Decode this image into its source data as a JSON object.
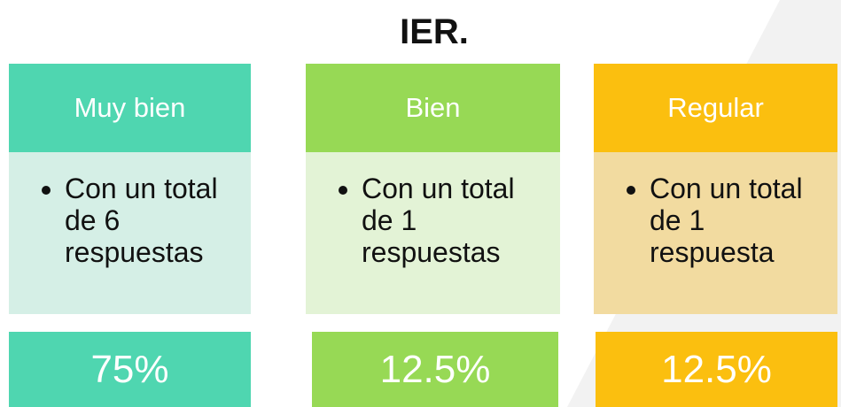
{
  "title": "IER.",
  "columns": [
    {
      "header": "Muy bien",
      "text": "Con un total de 6 respuestas",
      "percent": "75%"
    },
    {
      "header": "Bien",
      "text": "Con un total de 1 respuestas",
      "percent": "12.5%"
    },
    {
      "header": "Regular",
      "text": "Con un total de 1 respuesta",
      "percent": "12.5%"
    }
  ]
}
